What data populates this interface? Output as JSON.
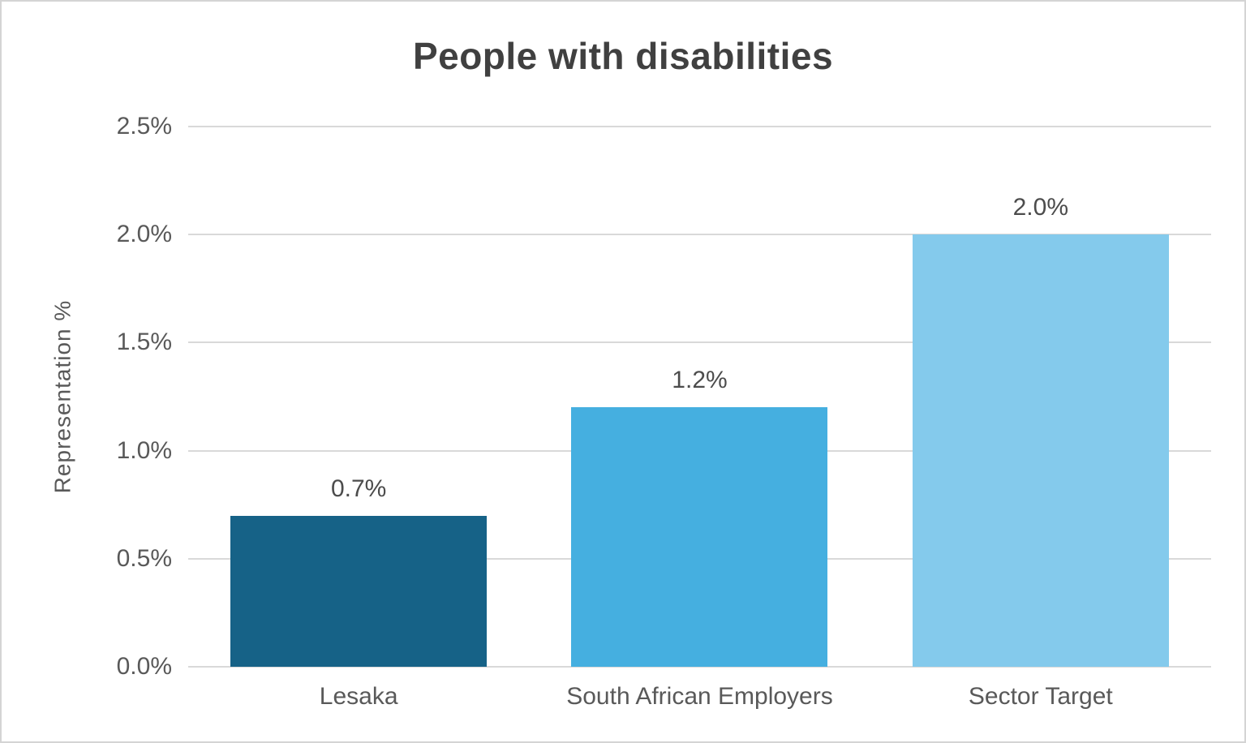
{
  "chart_data": {
    "type": "bar",
    "title": "People with disabilities",
    "ylabel": "Representation %",
    "xlabel": "",
    "categories": [
      "Lesaka",
      "South African Employers",
      "Sector Target"
    ],
    "values": [
      0.7,
      1.2,
      2.0
    ],
    "value_labels": [
      "0.7%",
      "1.2%",
      "2.0%"
    ],
    "bar_colors": [
      "#166287",
      "#45AFE0",
      "#84CAEC"
    ],
    "ylim": [
      0,
      2.5
    ],
    "ytick_step": 0.5,
    "ytick_labels": [
      "0.0%",
      "0.5%",
      "1.0%",
      "1.5%",
      "2.0%",
      "2.5%"
    ],
    "grid": "horizontal",
    "gridline_color": "#d9d9d9",
    "legend": false,
    "colors": {
      "title_text": "#404040",
      "axis_text": "#595959",
      "value_label_text": "#4c4c4c",
      "frame_border": "#d4d4d4",
      "background": "#ffffff"
    }
  }
}
